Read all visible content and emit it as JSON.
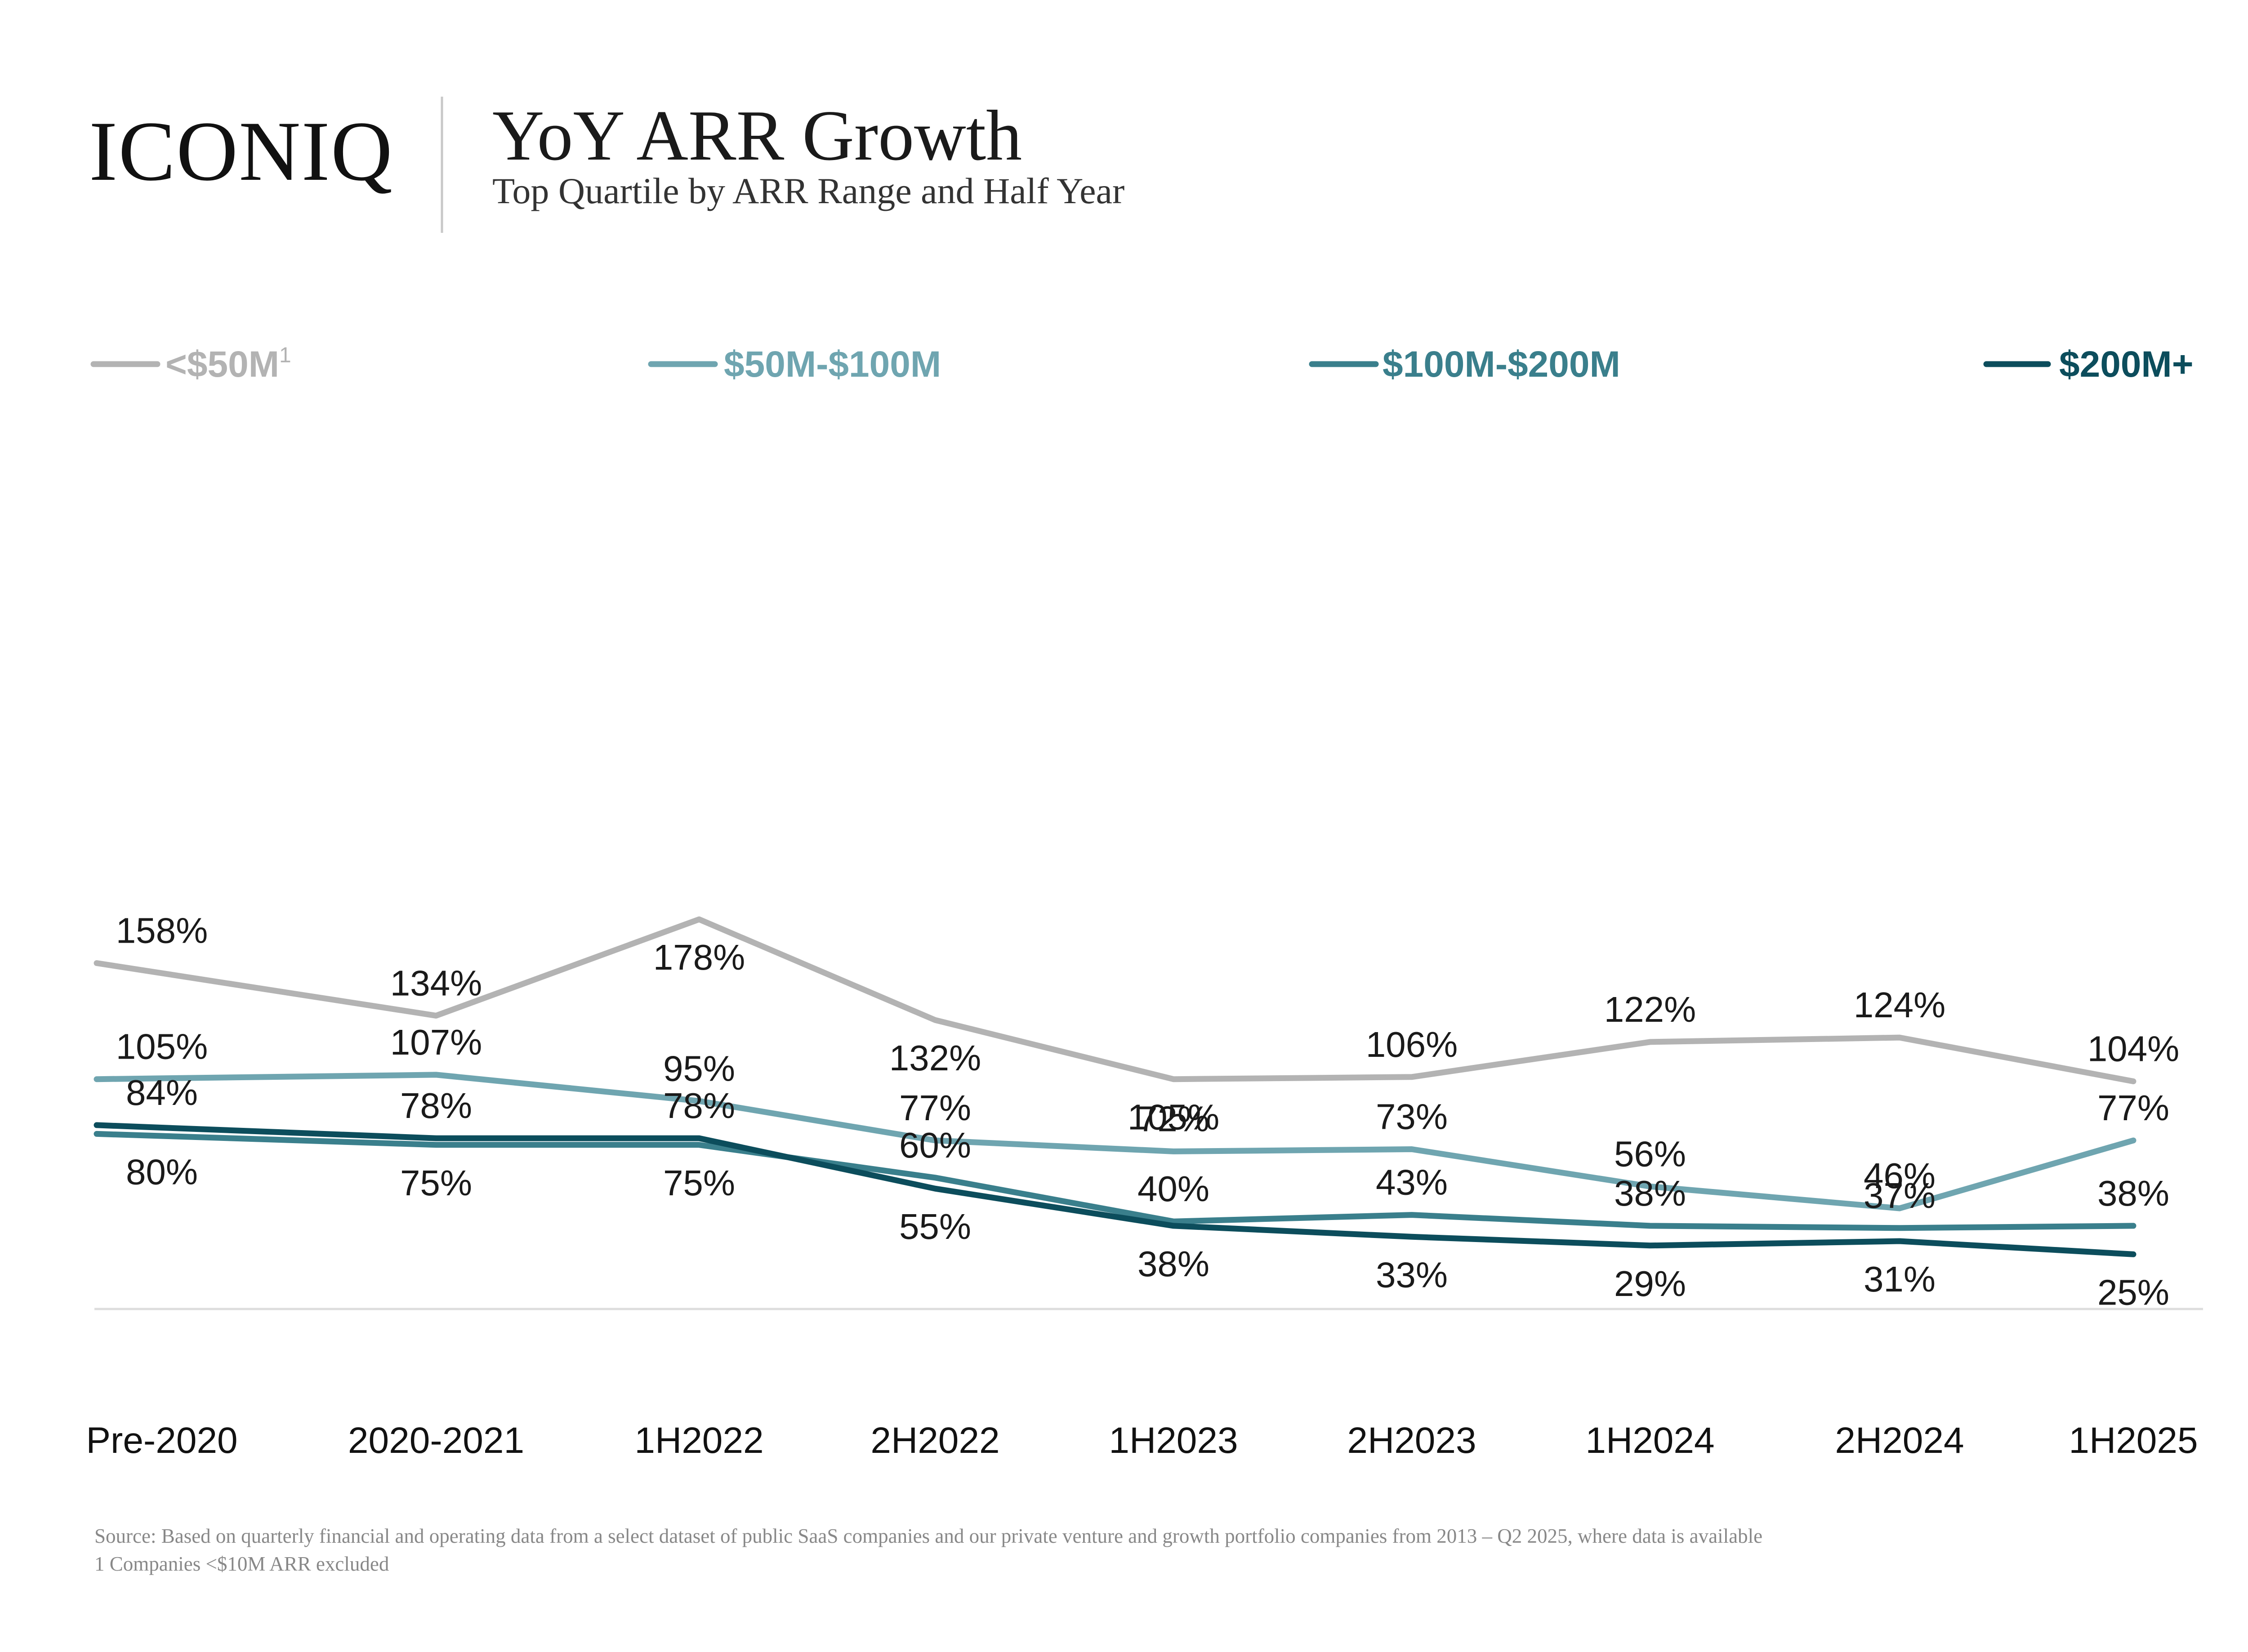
{
  "brand": {
    "logo_text": "ICONIQ"
  },
  "header": {
    "title": "YoY ARR Growth",
    "subtitle": "Top Quartile by ARR Range and Half Year"
  },
  "legend": [
    {
      "label": "<$50M",
      "superscript": "1",
      "color": "#B3B3B3"
    },
    {
      "label": "$50M-$100M",
      "superscript": "",
      "color": "#6FA5B0"
    },
    {
      "label": "$100M-$200M",
      "superscript": "",
      "color": "#3A7F8C"
    },
    {
      "label": "$200M+",
      "superscript": "",
      "color": "#0C4D5C"
    }
  ],
  "chart_data": {
    "type": "line",
    "title": "YoY ARR Growth",
    "subtitle": "Top Quartile by ARR Range and Half Year",
    "categories": [
      "Pre-2020",
      "2020-2021",
      "1H2022",
      "2H2022",
      "1H2023",
      "2H2023",
      "1H2024",
      "2H2024",
      "1H2025"
    ],
    "series": [
      {
        "name": "<$50M",
        "color": "#B3B3B3",
        "values": [
          158,
          134,
          178,
          132,
          105,
          106,
          122,
          124,
          104
        ],
        "labels": [
          "158%",
          "134%",
          "178%",
          "132%",
          "105%",
          "106%",
          "122%",
          "124%",
          "104%"
        ]
      },
      {
        "name": "$50M-$100M",
        "color": "#6FA5B0",
        "values": [
          105,
          107,
          95,
          77,
          72,
          73,
          56,
          46,
          77
        ],
        "labels": [
          "105%",
          "107%",
          "95%",
          "77%",
          "72%",
          "73%",
          "56%",
          "46%",
          "77%"
        ]
      },
      {
        "name": "$100M-$200M",
        "color": "#3A7F8C",
        "values": [
          80,
          75,
          75,
          60,
          40,
          43,
          38,
          37,
          38
        ],
        "labels": [
          "80%",
          "75%",
          "75%",
          "60%",
          "40%",
          "43%",
          "38%",
          "37%",
          "38%"
        ]
      },
      {
        "name": "$200M+",
        "color": "#0C4D5C",
        "values": [
          84,
          78,
          78,
          55,
          38,
          33,
          29,
          31,
          25
        ],
        "labels": [
          "84%",
          "78%",
          "78%",
          "55%",
          "38%",
          "33%",
          "29%",
          "31%",
          "25%"
        ]
      }
    ],
    "xlabel": "",
    "ylabel": "",
    "grid": false,
    "legend_position": "top"
  },
  "footnotes": {
    "source": "Source: Based on quarterly financial and operating data from a select dataset of public SaaS companies and our private venture and growth portfolio companies from 2013 – Q2 2025, where data is available",
    "note": "1 Companies <$10M ARR excluded"
  }
}
